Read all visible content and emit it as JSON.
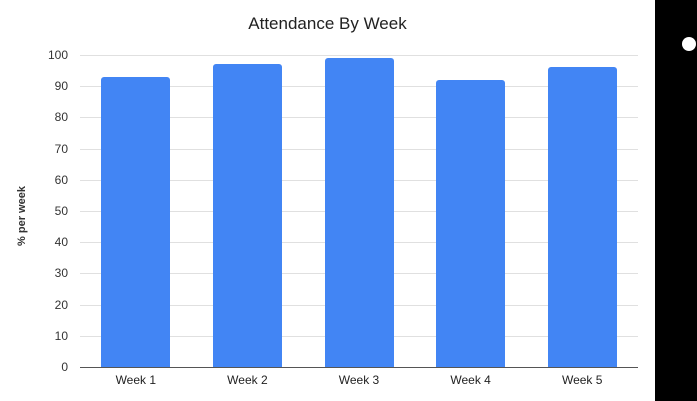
{
  "chart_data": {
    "type": "bar",
    "title": "Attendance By Week",
    "xlabel": "",
    "ylabel": "% per week",
    "categories": [
      "Week 1",
      "Week 2",
      "Week 3",
      "Week 4",
      "Week 5"
    ],
    "values": [
      93,
      97,
      99,
      92,
      96
    ],
    "ylim": [
      0,
      100
    ],
    "yticks": [
      0,
      10,
      20,
      30,
      40,
      50,
      60,
      70,
      80,
      90,
      100
    ],
    "grid": true,
    "legend": "none",
    "bar_color": "#4285f4"
  },
  "colors": {
    "bar": "#4285f4",
    "gridline": "#e0e0e0",
    "baseline": "#555555",
    "side_panel": "#000000"
  }
}
